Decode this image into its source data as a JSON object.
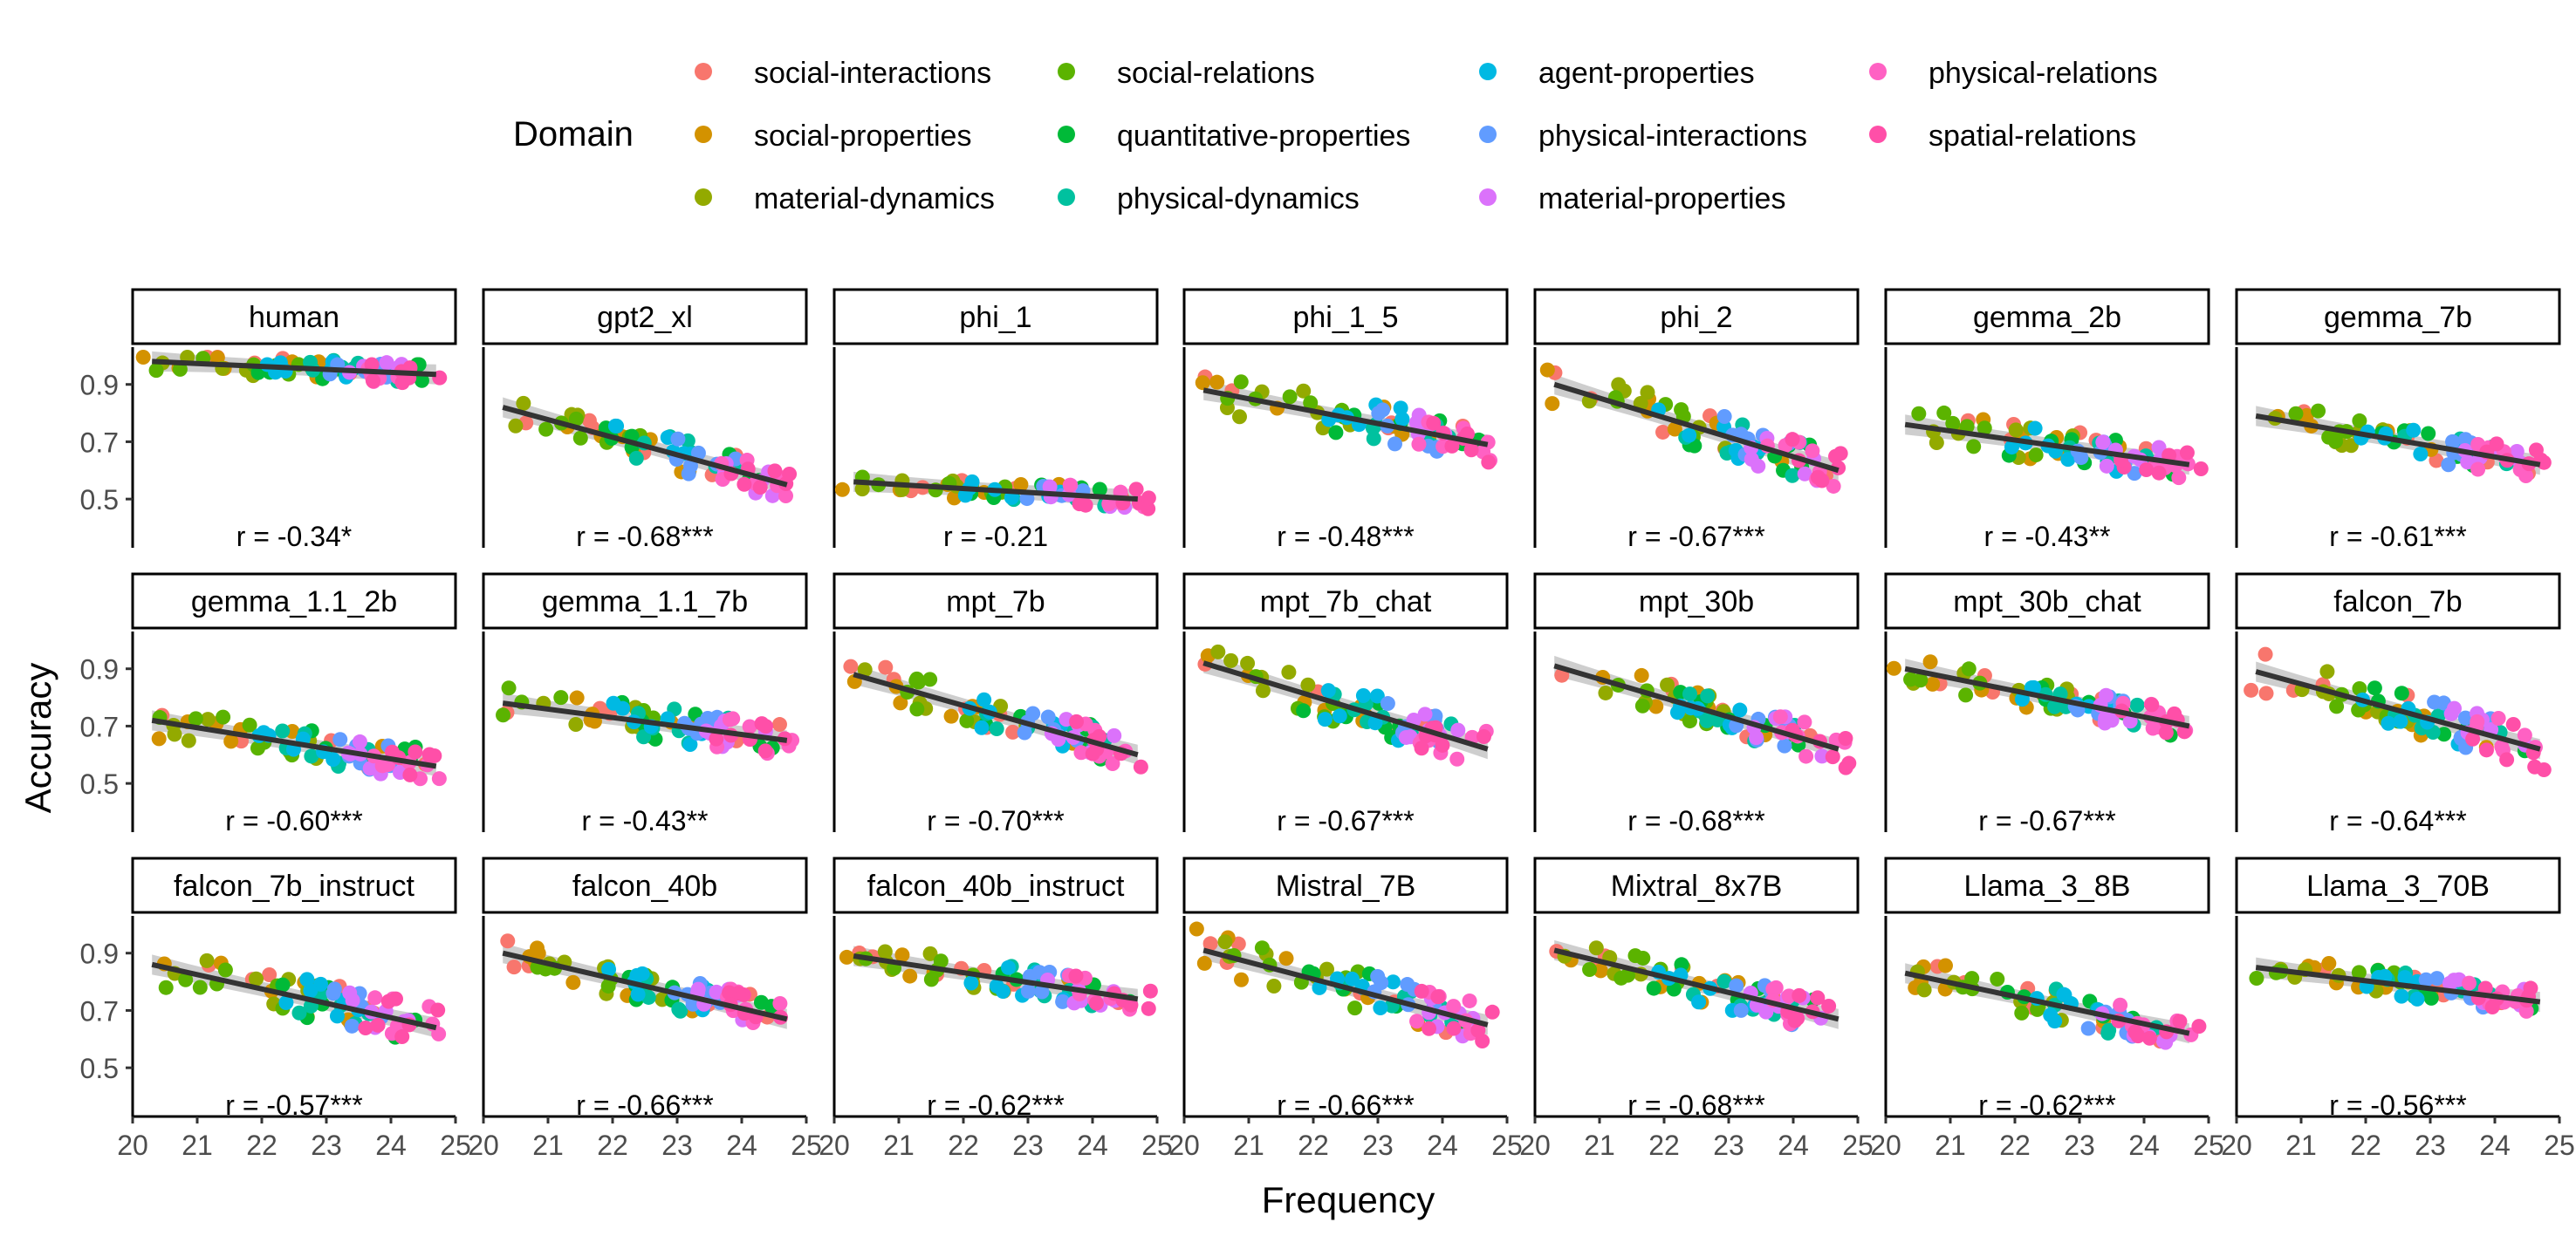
{
  "chart_data": {
    "type": "scatter",
    "facet_layout": {
      "rows": 3,
      "cols": 7
    },
    "xlabel": "Frequency",
    "ylabel": "Accuracy",
    "xlim": [
      20,
      25
    ],
    "xticks": [
      20,
      21,
      22,
      23,
      24,
      25
    ],
    "ylim": [
      0.33,
      1.03
    ],
    "yticks": [
      0.5,
      0.7,
      0.9
    ],
    "grid": false,
    "legend": {
      "title": "Domain",
      "position": "top",
      "entries": [
        {
          "name": "social-interactions",
          "color": "#F8766D"
        },
        {
          "name": "social-properties",
          "color": "#D39200"
        },
        {
          "name": "material-dynamics",
          "color": "#93AA00"
        },
        {
          "name": "social-relations",
          "color": "#5BB300"
        },
        {
          "name": "quantitative-properties",
          "color": "#00BA38"
        },
        {
          "name": "physical-dynamics",
          "color": "#00C19F"
        },
        {
          "name": "agent-properties",
          "color": "#00B9E3"
        },
        {
          "name": "physical-interactions",
          "color": "#619CFF"
        },
        {
          "name": "material-properties",
          "color": "#DB72FB"
        },
        {
          "name": "physical-relations",
          "color": "#FF61C3"
        },
        {
          "name": "spatial-relations",
          "color": "#FF4FA8"
        }
      ]
    },
    "domain_bands": [
      {
        "domain": "social-interactions",
        "x": [
          20.2,
          24.6
        ]
      },
      {
        "domain": "social-properties",
        "x": [
          20.1,
          23.9
        ]
      },
      {
        "domain": "material-dynamics",
        "x": [
          20.4,
          23.0
        ]
      },
      {
        "domain": "social-relations",
        "x": [
          20.3,
          22.7
        ]
      },
      {
        "domain": "quantitative-properties",
        "x": [
          21.8,
          24.6
        ]
      },
      {
        "domain": "physical-dynamics",
        "x": [
          22.3,
          24.2
        ]
      },
      {
        "domain": "agent-properties",
        "x": [
          21.9,
          23.6
        ]
      },
      {
        "domain": "physical-interactions",
        "x": [
          22.9,
          24.0
        ]
      },
      {
        "domain": "material-properties",
        "x": [
          23.3,
          24.5
        ]
      },
      {
        "domain": "physical-relations",
        "x": [
          23.6,
          24.8
        ]
      },
      {
        "domain": "spatial-relations",
        "x": [
          23.6,
          24.9
        ]
      }
    ],
    "panels": [
      {
        "model": "human",
        "r_label": "r = -0.34*",
        "fit": [
          0.98,
          0.935
        ],
        "spread": 0.035,
        "seed": 3
      },
      {
        "model": "gpt2_xl",
        "r_label": "r = -0.68***",
        "fit": [
          0.82,
          0.55
        ],
        "spread": 0.06,
        "seed": 11
      },
      {
        "model": "phi_1",
        "r_label": "r = -0.21",
        "fit": [
          0.56,
          0.5
        ],
        "spread": 0.035,
        "seed": 19
      },
      {
        "model": "phi_1_5",
        "r_label": "r = -0.48***",
        "fit": [
          0.88,
          0.69
        ],
        "spread": 0.07,
        "seed": 23
      },
      {
        "model": "phi_2",
        "r_label": "r = -0.67***",
        "fit": [
          0.9,
          0.6
        ],
        "spread": 0.075,
        "seed": 31
      },
      {
        "model": "gemma_2b",
        "r_label": "r = -0.43**",
        "fit": [
          0.76,
          0.62
        ],
        "spread": 0.06,
        "seed": 37
      },
      {
        "model": "gemma_7b",
        "r_label": "r = -0.61***",
        "fit": [
          0.79,
          0.62
        ],
        "spread": 0.055,
        "seed": 41
      },
      {
        "model": "gemma_1.1_2b",
        "r_label": "r = -0.60***",
        "fit": [
          0.72,
          0.56
        ],
        "spread": 0.06,
        "seed": 43
      },
      {
        "model": "gemma_1.1_7b",
        "r_label": "r = -0.43**",
        "fit": [
          0.78,
          0.65
        ],
        "spread": 0.06,
        "seed": 47
      },
      {
        "model": "mpt_7b",
        "r_label": "r = -0.70***",
        "fit": [
          0.88,
          0.6
        ],
        "spread": 0.06,
        "seed": 53
      },
      {
        "model": "mpt_7b_chat",
        "r_label": "r = -0.67***",
        "fit": [
          0.92,
          0.62
        ],
        "spread": 0.07,
        "seed": 59
      },
      {
        "model": "mpt_30b",
        "r_label": "r = -0.68***",
        "fit": [
          0.91,
          0.62
        ],
        "spread": 0.06,
        "seed": 61
      },
      {
        "model": "mpt_30b_chat",
        "r_label": "r = -0.67***",
        "fit": [
          0.9,
          0.7
        ],
        "spread": 0.05,
        "seed": 67
      },
      {
        "model": "falcon_7b",
        "r_label": "r = -0.64***",
        "fit": [
          0.89,
          0.62
        ],
        "spread": 0.07,
        "seed": 71
      },
      {
        "model": "falcon_7b_instruct",
        "r_label": "r = -0.57***",
        "fit": [
          0.86,
          0.64
        ],
        "spread": 0.07,
        "seed": 73
      },
      {
        "model": "falcon_40b",
        "r_label": "r = -0.66***",
        "fit": [
          0.9,
          0.67
        ],
        "spread": 0.06,
        "seed": 79
      },
      {
        "model": "falcon_40b_instruct",
        "r_label": "r = -0.62***",
        "fit": [
          0.89,
          0.74
        ],
        "spread": 0.05,
        "seed": 83
      },
      {
        "model": "Mistral_7B",
        "r_label": "r = -0.66***",
        "fit": [
          0.91,
          0.65
        ],
        "spread": 0.07,
        "seed": 89
      },
      {
        "model": "Mixtral_8x7B",
        "r_label": "r = -0.68***",
        "fit": [
          0.91,
          0.67
        ],
        "spread": 0.06,
        "seed": 97
      },
      {
        "model": "Llama_3_8B",
        "r_label": "r = -0.62***",
        "fit": [
          0.83,
          0.62
        ],
        "spread": 0.06,
        "seed": 101
      },
      {
        "model": "Llama_3_70B",
        "r_label": "r = -0.56***",
        "fit": [
          0.85,
          0.73
        ],
        "spread": 0.045,
        "seed": 103
      }
    ]
  }
}
